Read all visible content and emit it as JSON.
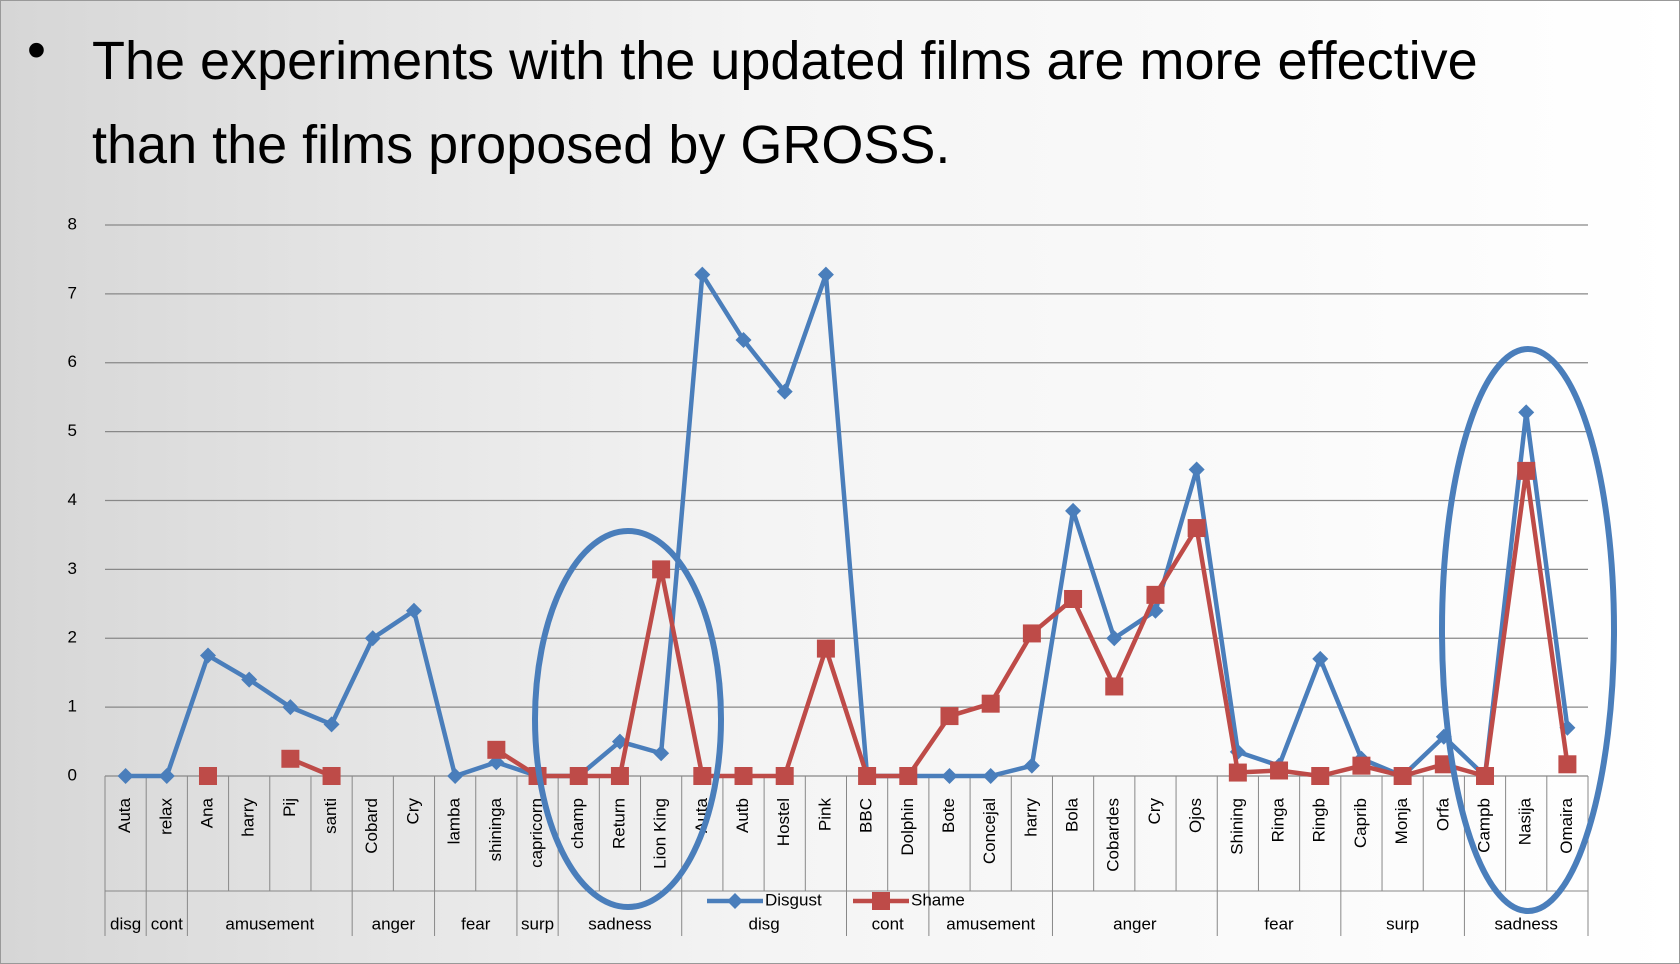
{
  "slide_text": "The experiments with the updated films are more effective than the films proposed by GROSS.",
  "chart_data": {
    "type": "line",
    "category_groups": [
      {
        "name": "disg",
        "categories": [
          "Auta"
        ]
      },
      {
        "name": "cont",
        "categories": [
          "relax"
        ]
      },
      {
        "name": "amusement",
        "categories": [
          "Ana",
          "harry",
          "Pij",
          "santi"
        ]
      },
      {
        "name": "anger",
        "categories": [
          "Cobard",
          "Cry"
        ]
      },
      {
        "name": "fear",
        "categories": [
          "lamba",
          "shininga"
        ]
      },
      {
        "name": "surp",
        "categories": [
          "capricorn"
        ]
      },
      {
        "name": "sadness",
        "categories": [
          "champ",
          "Return",
          "Lion King"
        ]
      },
      {
        "name": "disg",
        "categories": [
          "Auta",
          "Autb",
          "Hostel",
          "Pink"
        ]
      },
      {
        "name": "cont",
        "categories": [
          "BBC",
          "Dolphin"
        ]
      },
      {
        "name": "amusement",
        "categories": [
          "Bote",
          "Concejal",
          "harry"
        ]
      },
      {
        "name": "anger",
        "categories": [
          "Bola",
          "Cobardes",
          "Cry",
          "Ojos"
        ]
      },
      {
        "name": "fear",
        "categories": [
          "Shining",
          "Ringa",
          "Ringb"
        ]
      },
      {
        "name": "surp",
        "categories": [
          "Caprib",
          "Monja",
          "Orfa"
        ]
      },
      {
        "name": "sadness",
        "categories": [
          "Campb",
          "Nasija",
          "Omaira"
        ]
      }
    ],
    "series": [
      {
        "name": "Disgust",
        "color": "#4a7ebb",
        "marker": "diamond",
        "values": [
          0,
          0,
          1.75,
          1.4,
          1.0,
          0.75,
          2.0,
          2.4,
          0,
          0.2,
          0,
          0,
          0.5,
          0.33,
          7.28,
          6.33,
          5.58,
          7.28,
          0,
          0,
          0,
          0,
          0.15,
          3.85,
          2.0,
          2.4,
          4.45,
          0.35,
          0.15,
          1.7,
          0.25,
          0,
          0.57,
          0,
          5.28,
          0.7
        ]
      },
      {
        "name": "Shame",
        "color": "#be4b48",
        "marker": "square",
        "values": [
          null,
          null,
          0,
          null,
          0.25,
          0,
          null,
          null,
          null,
          0.38,
          0,
          0,
          0,
          3.0,
          0,
          0,
          0,
          1.85,
          0,
          0,
          0.87,
          1.05,
          2.07,
          2.57,
          1.3,
          2.63,
          3.6,
          0.05,
          0.08,
          0,
          0.15,
          0,
          0.17,
          0,
          4.43,
          0.17
        ]
      }
    ],
    "ylim": [
      0,
      8
    ],
    "yticks": [
      0,
      1,
      2,
      3,
      4,
      5,
      6,
      7,
      8
    ],
    "grid": true,
    "legend": "bottom"
  }
}
